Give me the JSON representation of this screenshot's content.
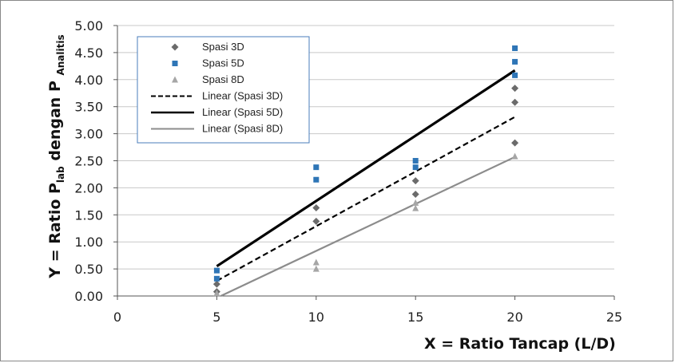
{
  "chart_data": {
    "type": "scatter",
    "xlabel": "X = Ratio Tancap (L/D)",
    "ylabel_parts": [
      "Y = Ratio P",
      "lab",
      " dengan P ",
      "Analitis"
    ],
    "xlim": [
      0,
      25
    ],
    "ylim": [
      0,
      5
    ],
    "x_ticks": [
      "0",
      "5",
      "10",
      "15",
      "20",
      "25"
    ],
    "y_ticks": [
      "0.00",
      "0.50",
      "1.00",
      "1.50",
      "2.00",
      "2.50",
      "3.00",
      "3.50",
      "4.00",
      "4.50",
      "5.00"
    ],
    "grid": true,
    "legend_position": "top-left",
    "series": [
      {
        "name": "Spasi 3D",
        "marker": "diamond",
        "color": "#6b6b6b",
        "x": [
          5,
          5,
          10,
          10,
          15,
          15,
          20,
          20,
          20
        ],
        "y": [
          0.08,
          0.22,
          1.38,
          1.63,
          1.88,
          2.13,
          2.83,
          3.58,
          3.84
        ]
      },
      {
        "name": "Spasi 5D",
        "marker": "square",
        "color": "#2e75b6",
        "x": [
          5,
          5,
          10,
          10,
          15,
          15,
          20,
          20,
          20
        ],
        "y": [
          0.32,
          0.47,
          2.15,
          2.38,
          2.38,
          2.5,
          4.08,
          4.33,
          4.58
        ]
      },
      {
        "name": "Spasi 8D",
        "marker": "triangle",
        "color": "#a6a6a6",
        "x": [
          5,
          10,
          10,
          15,
          15,
          20
        ],
        "y": [
          0.05,
          0.5,
          0.62,
          1.62,
          1.72,
          2.58
        ]
      }
    ],
    "trendlines": [
      {
        "name": "Linear (Spasi 3D)",
        "style": "dashed",
        "color": "#000000",
        "x": [
          5,
          20
        ],
        "y": [
          0.28,
          3.31
        ]
      },
      {
        "name": "Linear (Spasi 5D)",
        "style": "solid",
        "color": "#000000",
        "x": [
          5,
          20
        ],
        "y": [
          0.55,
          4.17
        ]
      },
      {
        "name": "Linear (Spasi 8D)",
        "style": "solid",
        "color": "#8c8c8c",
        "x": [
          5.2,
          20
        ],
        "y": [
          0.0,
          2.57
        ]
      }
    ]
  }
}
